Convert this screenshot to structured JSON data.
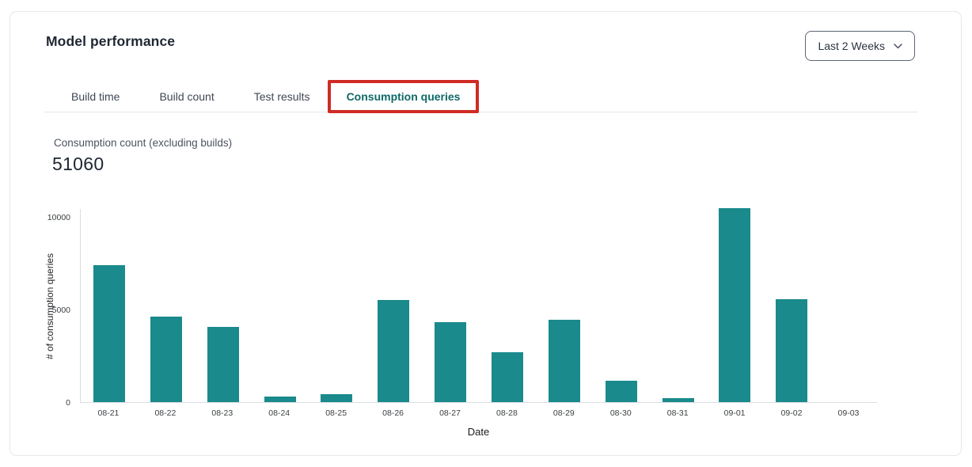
{
  "header": {
    "title": "Model performance",
    "range_selector": {
      "label": "Last 2 Weeks"
    }
  },
  "tabs": [
    {
      "label": "Build time",
      "active": false
    },
    {
      "label": "Build count",
      "active": false
    },
    {
      "label": "Test results",
      "active": false
    },
    {
      "label": "Consumption queries",
      "active": true,
      "annotated": true
    }
  ],
  "metric": {
    "label": "Consumption count (excluding builds)",
    "value": "51060"
  },
  "chart_data": {
    "type": "bar",
    "title": "Consumption count (excluding builds)",
    "categories": [
      "08-21",
      "08-22",
      "08-23",
      "08-24",
      "08-25",
      "08-26",
      "08-27",
      "08-28",
      "08-29",
      "08-30",
      "08-31",
      "09-01",
      "09-02",
      "09-03"
    ],
    "values": [
      7400,
      4600,
      4040,
      300,
      420,
      5500,
      4320,
      2700,
      4440,
      1150,
      200,
      10450,
      5540,
      0
    ],
    "xlabel": "Date",
    "ylabel": "# of consumption queries",
    "ylim": [
      0,
      10000
    ],
    "yticks": [
      0,
      5000,
      10000
    ],
    "grid": false,
    "legend": false,
    "bar_color": "#1a8a8c",
    "total": 51060
  },
  "colors": {
    "accent_teal": "#1a8a8c",
    "active_tab_teal": "#0e6968",
    "annotation_red": "#cf2b24",
    "card_border": "#e6e7ea",
    "axis_line": "#d9dde2"
  }
}
